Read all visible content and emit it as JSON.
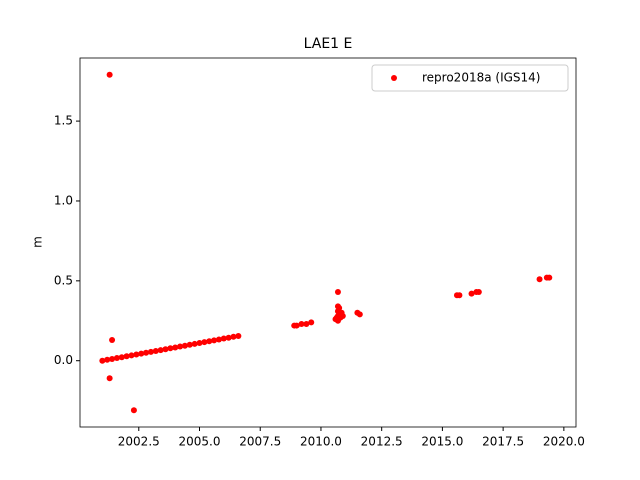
{
  "chart_data": {
    "type": "scatter",
    "title": "LAE1 E",
    "y_label": "m",
    "legend": "upper right",
    "grid": false,
    "xlim": [
      2000.08,
      2020.5
    ],
    "ylim": [
      -0.415,
      1.895
    ],
    "xticks": [
      {
        "value": 2002.5,
        "label": "2002.5"
      },
      {
        "value": 2005,
        "label": "2005.0"
      },
      {
        "value": 2007.5,
        "label": "2007.5"
      },
      {
        "value": 2010,
        "label": "2010.0"
      },
      {
        "value": 2012.5,
        "label": "2012.5"
      },
      {
        "value": 2015,
        "label": "2015.0"
      },
      {
        "value": 2017.5,
        "label": "2017.5"
      },
      {
        "value": 2020,
        "label": "2020.0"
      }
    ],
    "yticks": [
      {
        "value": 0,
        "label": "0.0"
      },
      0.5,
      {
        "value": 1,
        "label": "1.0"
      },
      1.5
    ],
    "series": [
      {
        "name": "repro2018a (IGS14)",
        "color": "#ff0000",
        "x": [
          2001.0,
          2001.2,
          2001.4,
          2001.6,
          2001.8,
          2002.0,
          2002.2,
          2002.4,
          2002.6,
          2002.8,
          2003.0,
          2003.2,
          2003.4,
          2003.6,
          2003.8,
          2004.0,
          2004.2,
          2004.4,
          2004.6,
          2004.8,
          2005.0,
          2005.2,
          2005.4,
          2005.6,
          2005.8,
          2006.0,
          2006.2,
          2006.4,
          2006.6,
          2001.3,
          2001.4,
          2001.3,
          2002.3,
          2008.9,
          2009.0,
          2009.2,
          2009.4,
          2009.6,
          2010.7,
          2010.7,
          2010.75,
          2010.7,
          2010.8,
          2010.7,
          2010.65,
          2010.7,
          2010.7,
          2010.6,
          2010.8,
          2010.9,
          2010.85,
          2011.5,
          2011.6,
          2015.6,
          2015.7,
          2016.2,
          2016.4,
          2016.5,
          2019.0,
          2019.3,
          2019.4
        ],
        "values": [
          0,
          0.006,
          0.011,
          0.017,
          0.022,
          0.028,
          0.033,
          0.039,
          0.044,
          0.05,
          0.055,
          0.061,
          0.066,
          0.072,
          0.078,
          0.083,
          0.089,
          0.094,
          0.1,
          0.105,
          0.111,
          0.116,
          0.122,
          0.127,
          0.133,
          0.139,
          0.144,
          0.15,
          0.155,
          1.79,
          0.13,
          -0.11,
          -0.31,
          0.22,
          0.22,
          0.23,
          0.23,
          0.24,
          0.43,
          0.34,
          0.33,
          0.31,
          0.3,
          0.28,
          0.27,
          0.26,
          0.25,
          0.26,
          0.27,
          0.28,
          0.3,
          0.3,
          0.29,
          0.41,
          0.41,
          0.42,
          0.43,
          0.43,
          0.51,
          0.52,
          0.52
        ]
      }
    ]
  }
}
